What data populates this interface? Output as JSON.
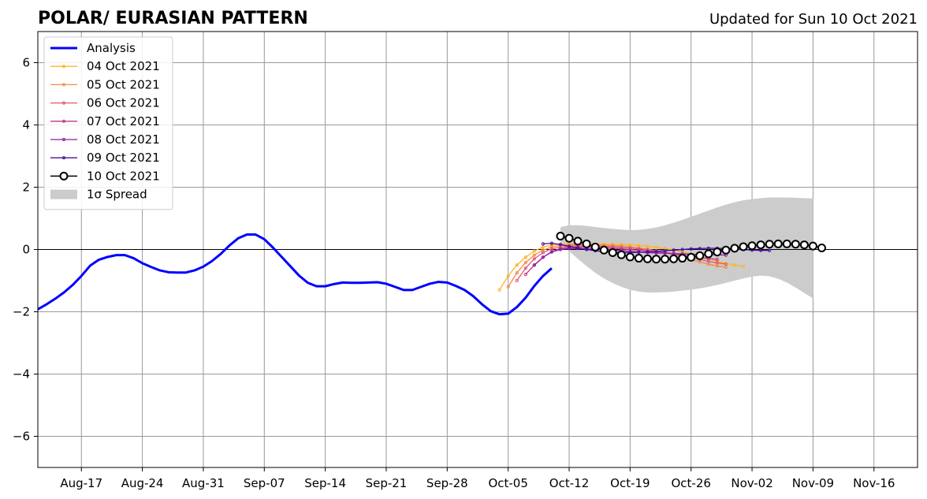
{
  "title": "POLAR/ EURASIAN  PATTERN",
  "subtitle": "Updated for Sun 10 Oct 2021",
  "chart_data": {
    "type": "line",
    "title": "POLAR/ EURASIAN  PATTERN",
    "xlabel": "",
    "ylabel": "",
    "x_axis": {
      "start_date": "2021-08-12",
      "end_date": "2021-11-21",
      "tick_labels": [
        "Aug-17",
        "Aug-24",
        "Aug-31",
        "Sep-07",
        "Sep-14",
        "Sep-21",
        "Sep-28",
        "Oct-05",
        "Oct-12",
        "Oct-19",
        "Oct-26",
        "Nov-02",
        "Nov-09",
        "Nov-16"
      ],
      "tick_dates": [
        "2021-08-17",
        "2021-08-24",
        "2021-08-31",
        "2021-09-07",
        "2021-09-14",
        "2021-09-21",
        "2021-09-28",
        "2021-10-05",
        "2021-10-12",
        "2021-10-19",
        "2021-10-26",
        "2021-11-02",
        "2021-11-09",
        "2021-11-16"
      ]
    },
    "ylim": [
      -7,
      7
    ],
    "y_ticks": [
      -6,
      -4,
      -2,
      0,
      2,
      4,
      6
    ],
    "y_tick_labels": [
      "−6",
      "−4",
      "−2",
      "0",
      "2",
      "4",
      "6"
    ],
    "grid": true,
    "legend_position": "top-left",
    "analysis": {
      "name": "Analysis",
      "color": "#0000ff",
      "start_date": "2021-08-12",
      "values": [
        -1.92,
        -1.76,
        -1.58,
        -1.38,
        -1.14,
        -0.85,
        -0.52,
        -0.33,
        -0.24,
        -0.18,
        -0.18,
        -0.28,
        -0.44,
        -0.56,
        -0.67,
        -0.73,
        -0.74,
        -0.74,
        -0.67,
        -0.55,
        -0.37,
        -0.14,
        0.13,
        0.36,
        0.48,
        0.48,
        0.33,
        0.06,
        -0.24,
        -0.54,
        -0.84,
        -1.07,
        -1.18,
        -1.18,
        -1.11,
        -1.06,
        -1.07,
        -1.07,
        -1.06,
        -1.05,
        -1.1,
        -1.2,
        -1.3,
        -1.3,
        -1.2,
        -1.1,
        -1.04,
        -1.06,
        -1.17,
        -1.3,
        -1.5,
        -1.76,
        -1.98,
        -2.08,
        -2.06,
        -1.85,
        -1.55,
        -1.17,
        -0.85,
        -0.6
      ]
    },
    "series": [
      {
        "name": "04 Oct 2021",
        "color": "#fcb627",
        "start_date": "2021-10-04",
        "values": [
          -1.3,
          -0.85,
          -0.5,
          -0.25,
          -0.05,
          0.08,
          0.14,
          0.17,
          0.18,
          0.18,
          0.18,
          0.18,
          0.17,
          0.17,
          0.16,
          0.15,
          0.13,
          0.1,
          0.07,
          0.03,
          -0.02,
          -0.08,
          -0.15,
          -0.22,
          -0.3,
          -0.38,
          -0.45,
          -0.5,
          -0.54
        ]
      },
      {
        "name": "05 Oct 2021",
        "color": "#f58a46",
        "start_date": "2021-10-05",
        "values": [
          -1.2,
          -0.75,
          -0.42,
          -0.18,
          -0.02,
          0.08,
          0.13,
          0.15,
          0.16,
          0.16,
          0.15,
          0.14,
          0.13,
          0.11,
          0.08,
          0.05,
          0.01,
          -0.04,
          -0.1,
          -0.17,
          -0.25,
          -0.33,
          -0.4,
          -0.47,
          -0.53,
          -0.57
        ]
      },
      {
        "name": "06 Oct 2021",
        "color": "#e3586f",
        "start_date": "2021-10-06",
        "values": [
          -1.0,
          -0.6,
          -0.3,
          -0.1,
          0.02,
          0.08,
          0.11,
          0.12,
          0.12,
          0.11,
          0.1,
          0.09,
          0.07,
          0.05,
          0.02,
          -0.01,
          -0.05,
          -0.09,
          -0.14,
          -0.2,
          -0.26,
          -0.32,
          -0.38,
          -0.43,
          -0.47
        ]
      },
      {
        "name": "07 Oct 2021",
        "color": "#c1368e",
        "start_date": "2021-10-07",
        "values": [
          -0.8,
          -0.5,
          -0.25,
          -0.07,
          0.03,
          0.07,
          0.08,
          0.08,
          0.07,
          0.06,
          0.04,
          0.02,
          0.0,
          -0.02,
          -0.05,
          -0.08,
          -0.11,
          -0.14,
          -0.18,
          -0.22,
          -0.26,
          -0.29,
          -0.32
        ]
      },
      {
        "name": "08 Oct 2021",
        "color": "#8b1ca3",
        "start_date": "2021-10-08",
        "values": [
          -0.5,
          -0.25,
          -0.08,
          0.0,
          0.03,
          0.03,
          0.02,
          0.01,
          0.0,
          -0.02,
          -0.04,
          -0.06,
          -0.08,
          -0.1,
          -0.11,
          -0.12,
          -0.13,
          -0.14,
          -0.15,
          -0.16,
          -0.17,
          -0.17,
          -0.18
        ]
      },
      {
        "name": "09 Oct 2021",
        "color": "#4a0c9d",
        "start_date": "2021-10-09",
        "values": [
          0.18,
          0.2,
          0.16,
          0.1,
          0.05,
          0.0,
          -0.04,
          -0.07,
          -0.09,
          -0.1,
          -0.1,
          -0.09,
          -0.08,
          -0.06,
          -0.04,
          -0.02,
          0.0,
          0.02,
          0.03,
          0.04,
          0.04,
          0.03,
          0.02,
          0.0,
          -0.02,
          -0.03,
          -0.03
        ]
      },
      {
        "name": "10 Oct 2021",
        "color": "#000000",
        "start_date": "2021-10-11",
        "values": [
          0.43,
          0.36,
          0.27,
          0.18,
          0.08,
          -0.02,
          -0.1,
          -0.17,
          -0.24,
          -0.28,
          -0.3,
          -0.31,
          -0.31,
          -0.3,
          -0.28,
          -0.25,
          -0.2,
          -0.14,
          -0.08,
          -0.02,
          0.04,
          0.09,
          0.12,
          0.15,
          0.17,
          0.18,
          0.18,
          0.17,
          0.15,
          0.11,
          0.05
        ]
      }
    ],
    "spread": {
      "name": "1σ Spread",
      "color": "#cccccc",
      "start_date": "2021-10-11",
      "upper": [
        0.72,
        0.78,
        0.78,
        0.76,
        0.72,
        0.69,
        0.66,
        0.64,
        0.62,
        0.63,
        0.66,
        0.71,
        0.78,
        0.86,
        0.95,
        1.05,
        1.15,
        1.25,
        1.35,
        1.44,
        1.52,
        1.58,
        1.62,
        1.65,
        1.67,
        1.67,
        1.67,
        1.66,
        1.65,
        1.64
      ],
      "lower": [
        0.2,
        -0.05,
        -0.3,
        -0.53,
        -0.75,
        -0.93,
        -1.08,
        -1.2,
        -1.29,
        -1.35,
        -1.38,
        -1.38,
        -1.37,
        -1.35,
        -1.32,
        -1.29,
        -1.25,
        -1.2,
        -1.14,
        -1.07,
        -1.0,
        -0.93,
        -0.87,
        -0.84,
        -0.86,
        -0.94,
        -1.06,
        -1.22,
        -1.4,
        -1.57
      ]
    }
  }
}
